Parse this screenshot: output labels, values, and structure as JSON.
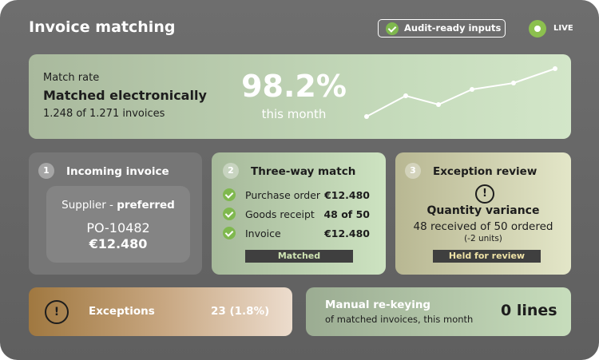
{
  "header": {
    "title": "Invoice matching",
    "badge": "Audit-ready inputs",
    "status": "LIVE"
  },
  "hero": {
    "label": "Match rate",
    "headline": "Matched electronically",
    "detail": "1.248 of 1.271 invoices",
    "value": "98.2%",
    "period": "this month"
  },
  "steps": [
    {
      "number": "1",
      "title": "Incoming invoice",
      "supplier_prefix": "Supplier - ",
      "supplier": "preferred",
      "po": "PO-10482",
      "amount": "€12.480"
    },
    {
      "number": "2",
      "title": "Three-way match",
      "rows": [
        [
          "Purchase order",
          "€12.480"
        ],
        [
          "Goods receipt",
          "48 of 50"
        ],
        [
          "Invoice",
          "€12.480"
        ]
      ],
      "status": "Matched"
    },
    {
      "number": "3",
      "title": "Exception review",
      "heading": "Quantity variance",
      "detail": "48 received of 50 ordered",
      "note": "(-2 units)",
      "status": "Held for review"
    }
  ],
  "footer": {
    "exceptions": {
      "label": "Exceptions",
      "value": "23 (1.8%)"
    },
    "manual": {
      "title": "Manual re-keying",
      "subtitle": "of matched invoices, this month",
      "value": "0 lines"
    }
  }
}
